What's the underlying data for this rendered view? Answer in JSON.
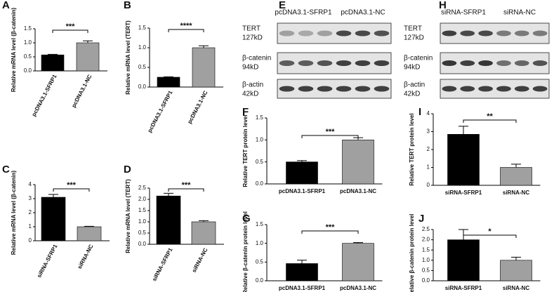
{
  "chart_data": [
    {
      "type": "bar",
      "panel": "A",
      "ylabel": "Relative mRNA level (β-catenin)",
      "categories": [
        "pcDNA3.1-SFRP1",
        "pcDNA3.1-NC"
      ],
      "values": [
        0.57,
        1.0
      ],
      "errors": [
        0.02,
        0.07
      ],
      "colors": [
        "#000000",
        "#a0a0a0"
      ],
      "ylim": [
        0,
        1.5
      ],
      "yticks": [
        {
          "value": 0,
          "label": "0.0"
        },
        {
          "value": 0.5,
          "label": "0.5"
        },
        {
          "value": 1,
          "label": "1.0"
        },
        {
          "value": 1.5,
          "label": "1.5"
        }
      ],
      "significance": "***"
    },
    {
      "type": "bar",
      "panel": "B",
      "ylabel": "Relative mRNA level (TERT)",
      "categories": [
        "pcDNA3.1-SFRP1",
        "pcDNA3.1-NC"
      ],
      "values": [
        0.25,
        1.0
      ],
      "errors": [
        0.01,
        0.05
      ],
      "colors": [
        "#000000",
        "#a0a0a0"
      ],
      "ylim": [
        0,
        1.5
      ],
      "yticks": [
        {
          "value": 0,
          "label": "0.0"
        },
        {
          "value": 0.5,
          "label": "0.5"
        },
        {
          "value": 1,
          "label": "1.0"
        },
        {
          "value": 1.5,
          "label": "1.5"
        }
      ],
      "significance": "****"
    },
    {
      "type": "bar",
      "panel": "C",
      "ylabel": "Relative mRNA level (β-catenin)",
      "categories": [
        "siRNA-SFRP1",
        "siRNA-NC"
      ],
      "values": [
        3.1,
        1.0
      ],
      "errors": [
        0.2,
        0.03
      ],
      "colors": [
        "#000000",
        "#a0a0a0"
      ],
      "ylim": [
        0,
        4
      ],
      "yticks": [
        0,
        1,
        2,
        3,
        4
      ],
      "significance": "***"
    },
    {
      "type": "bar",
      "panel": "D",
      "ylabel": "Relative mRNA level (TERT)",
      "categories": [
        "siRNA-SFRP1",
        "siRNA-NC"
      ],
      "values": [
        2.15,
        1.0
      ],
      "errors": [
        0.12,
        0.05
      ],
      "colors": [
        "#000000",
        "#a0a0a0"
      ],
      "ylim": [
        0,
        2.5
      ],
      "yticks": [
        {
          "value": 0,
          "label": "0.0"
        },
        {
          "value": 0.5,
          "label": "0.5"
        },
        {
          "value": 1,
          "label": "1.0"
        },
        {
          "value": 1.5,
          "label": "1.5"
        },
        {
          "value": 2,
          "label": "2.0"
        },
        {
          "value": 2.5,
          "label": "2.5"
        }
      ],
      "significance": "***"
    },
    {
      "type": "bar",
      "panel": "F",
      "ylabel": "Relative TERT protein level",
      "categories": [
        "pcDNA3.1-SFRP1",
        "pcDNA3.1-NC"
      ],
      "values": [
        0.5,
        1.0
      ],
      "errors": [
        0.03,
        0.05
      ],
      "colors": [
        "#000000",
        "#a0a0a0"
      ],
      "ylim": [
        0,
        1.5
      ],
      "yticks": [
        {
          "value": 0,
          "label": "0.0"
        },
        {
          "value": 0.5,
          "label": "0.5"
        },
        {
          "value": 1,
          "label": "1.0"
        },
        {
          "value": 1.5,
          "label": "1.5"
        }
      ],
      "significance": "***"
    },
    {
      "type": "bar",
      "panel": "G",
      "ylabel": "Relative β-catenin protein level",
      "categories": [
        "pcDNA3.1-SFRP1",
        "pcDNA3.1-NC"
      ],
      "values": [
        0.46,
        1.0
      ],
      "errors": [
        0.09,
        0.02
      ],
      "colors": [
        "#000000",
        "#a0a0a0"
      ],
      "ylim": [
        0,
        1.5
      ],
      "yticks": [
        {
          "value": 0,
          "label": "0.0"
        },
        {
          "value": 0.5,
          "label": "0.5"
        },
        {
          "value": 1,
          "label": "1.0"
        },
        {
          "value": 1.5,
          "label": "1.5"
        }
      ],
      "significance": "***"
    },
    {
      "type": "bar",
      "panel": "I",
      "ylabel": "Relative TERT protein level",
      "categories": [
        "siRNA-SFRP1",
        "siRNA-NC"
      ],
      "values": [
        2.85,
        1.0
      ],
      "errors": [
        0.45,
        0.18
      ],
      "colors": [
        "#000000",
        "#a0a0a0"
      ],
      "ylim": [
        0,
        4
      ],
      "yticks": [
        0,
        1,
        2,
        3,
        4
      ],
      "significance": "**"
    },
    {
      "type": "bar",
      "panel": "J",
      "ylabel": "Relative β-catenin protein level",
      "categories": [
        "siRNA-SFRP1",
        "siRNA-NC"
      ],
      "values": [
        2.0,
        1.0
      ],
      "errors": [
        0.5,
        0.15
      ],
      "colors": [
        "#000000",
        "#a0a0a0"
      ],
      "ylim": [
        0,
        2.5
      ],
      "yticks": [
        {
          "value": 0,
          "label": "0.0"
        },
        {
          "value": 0.5,
          "label": "0.5"
        },
        {
          "value": 1,
          "label": "1.0"
        },
        {
          "value": 1.5,
          "label": "1.5"
        },
        {
          "value": 2,
          "label": "2.0"
        },
        {
          "value": 2.5,
          "label": "2.5"
        }
      ],
      "significance": "*"
    }
  ],
  "blots": [
    {
      "panel": "E",
      "groups": [
        "pcDNA3.1-SFRP1",
        "pcDNA3.1-NC"
      ],
      "rows": [
        {
          "protein": "TERT",
          "size": "127kD"
        },
        {
          "protein": "β-catenin",
          "size": "94kD"
        },
        {
          "protein": "β-actin",
          "size": "42kD"
        }
      ]
    },
    {
      "panel": "H",
      "groups": [
        "siRNA-SFRP1",
        "siRNA-NC"
      ],
      "rows": [
        {
          "protein": "TERT",
          "size": "127kD"
        },
        {
          "protein": "β-catenin",
          "size": "94kD"
        },
        {
          "protein": "β-actin",
          "size": "42kD"
        }
      ]
    }
  ]
}
